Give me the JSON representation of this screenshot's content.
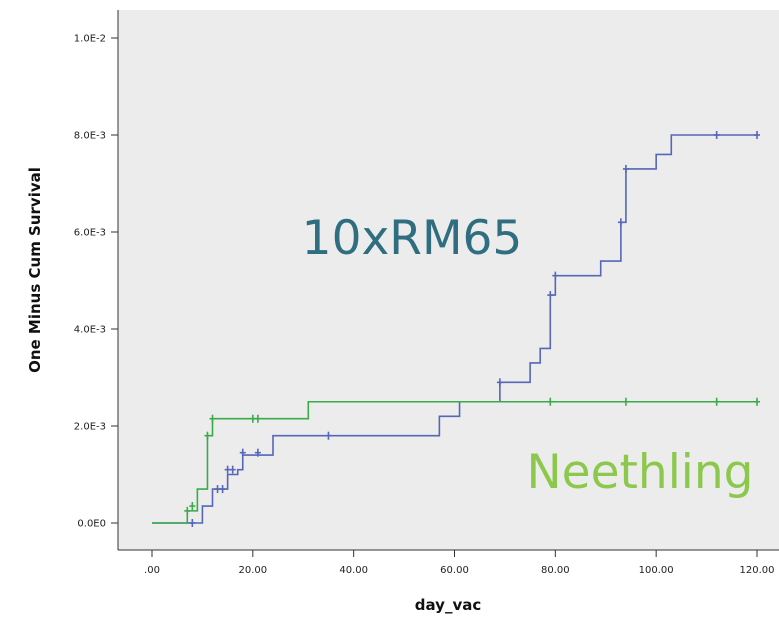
{
  "chart_data": {
    "type": "line",
    "subtype": "step",
    "xlabel": "day_vac",
    "ylabel": "One Minus Cum Survival",
    "xlim": [
      0,
      120
    ],
    "ylim": [
      0,
      0.01
    ],
    "grid": false,
    "background": "#ececec",
    "x_ticks": [
      0,
      20,
      40,
      60,
      80,
      100,
      120
    ],
    "x_tick_labels": [
      ".00",
      "20.00",
      "40.00",
      "60.00",
      "80.00",
      "100.00",
      "120.00"
    ],
    "y_ticks": [
      0,
      0.002,
      0.004,
      0.006,
      0.008,
      0.01
    ],
    "y_tick_labels": [
      "0.0E0",
      "2.0E-3",
      "4.0E-3",
      "6.0E-3",
      "8.0E-3",
      "1.0E-2"
    ],
    "annotations": [
      {
        "text": "10xRM65",
        "color": "#2e6e80",
        "series": "10xRM65"
      },
      {
        "text": "Neethling",
        "color": "#8cc84b",
        "series": "Neethling"
      }
    ],
    "series": [
      {
        "name": "10xRM65",
        "color": "#5666b8",
        "steps": [
          [
            0,
            0
          ],
          [
            10,
            0.00035
          ],
          [
            12,
            0.0007
          ],
          [
            15,
            0.001
          ],
          [
            17,
            0.0011
          ],
          [
            18,
            0.0014
          ],
          [
            24,
            0.0018
          ],
          [
            57,
            0.0022
          ],
          [
            61,
            0.0025
          ],
          [
            69,
            0.0029
          ],
          [
            75,
            0.0033
          ],
          [
            77,
            0.0036
          ],
          [
            79,
            0.0047
          ],
          [
            80,
            0.0051
          ],
          [
            89,
            0.0054
          ],
          [
            93,
            0.0062
          ],
          [
            94,
            0.0073
          ],
          [
            100,
            0.0076
          ],
          [
            103,
            0.008
          ],
          [
            120,
            0.008
          ]
        ],
        "censored": [
          [
            8,
            0
          ],
          [
            13,
            0.0007
          ],
          [
            14,
            0.0007
          ],
          [
            15,
            0.0011
          ],
          [
            16,
            0.0011
          ],
          [
            18,
            0.00145
          ],
          [
            21,
            0.00145
          ],
          [
            35,
            0.0018
          ],
          [
            69,
            0.0029
          ],
          [
            79,
            0.0047
          ],
          [
            80,
            0.0051
          ],
          [
            93,
            0.0062
          ],
          [
            94,
            0.0073
          ],
          [
            112,
            0.008
          ],
          [
            120,
            0.008
          ]
        ]
      },
      {
        "name": "Neethling",
        "color": "#3aaa4a",
        "steps": [
          [
            0,
            0
          ],
          [
            7,
            0.00025
          ],
          [
            9,
            0.0007
          ],
          [
            11,
            0.0018
          ],
          [
            12,
            0.00215
          ],
          [
            31,
            0.0025
          ],
          [
            120,
            0.0025
          ]
        ],
        "censored": [
          [
            7,
            0.00025
          ],
          [
            8,
            0.00035
          ],
          [
            11,
            0.0018
          ],
          [
            12,
            0.00215
          ],
          [
            20,
            0.00215
          ],
          [
            21,
            0.00215
          ],
          [
            79,
            0.0025
          ],
          [
            94,
            0.0025
          ],
          [
            112,
            0.0025
          ],
          [
            120,
            0.0025
          ]
        ]
      }
    ]
  }
}
